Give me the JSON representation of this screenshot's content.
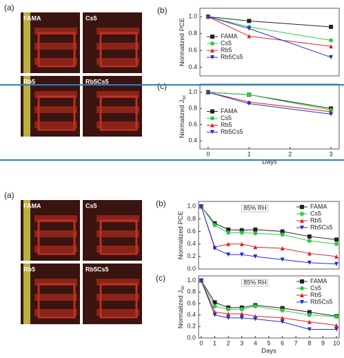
{
  "photo_panels": [
    {
      "label": "(a)",
      "tiles": [
        "FAMA",
        "Cs5",
        "Rb5",
        "Rb5Cs5"
      ]
    },
    {
      "label": "(a)",
      "tiles": [
        "FAMA",
        "Cs5",
        "Rb5",
        "Rb5Cs5"
      ]
    }
  ],
  "chart_data": [
    {
      "type": "line",
      "panel_label": "(b)",
      "y_label": "Normalized PCE",
      "x": [
        0,
        1,
        3
      ],
      "xlim": [
        -0.2,
        3.2
      ],
      "ylim": [
        0.3,
        1.1
      ],
      "yticks": [
        0.4,
        0.6,
        0.8,
        {
          "value": 1,
          "label": "1.0"
        }
      ],
      "legend": "center left",
      "series": [
        {
          "name": "FAMA",
          "color": "#222222",
          "marker": "square",
          "values": [
            1,
            0.95,
            0.88
          ]
        },
        {
          "name": "Cs5",
          "color": "#2ecc40",
          "marker": "circle",
          "values": [
            1,
            0.88,
            0.72
          ]
        },
        {
          "name": "Rb5",
          "color": "#e02020",
          "marker": "triangle-up",
          "values": [
            1,
            0.77,
            0.65
          ]
        },
        {
          "name": "Rb5Cs5",
          "color": "#2030d0",
          "marker": "triangle-down",
          "values": [
            1,
            0.86,
            0.52
          ]
        }
      ]
    },
    {
      "type": "line",
      "panel_label": "(c)",
      "y_label": "Normalized J",
      "y_label_sub": "sc",
      "x_label": "Days",
      "x": [
        0,
        1,
        3
      ],
      "xlim": [
        -0.2,
        3.2
      ],
      "ylim": [
        0.3,
        1.1
      ],
      "xticks": [
        0,
        1,
        2,
        3
      ],
      "yticks": [
        0.4,
        0.6,
        0.8,
        {
          "value": 1,
          "label": "1.0"
        }
      ],
      "legend": "center left",
      "series": [
        {
          "name": "FAMA",
          "color": "#222222",
          "marker": "square",
          "values": [
            1,
            0.97,
            0.8
          ]
        },
        {
          "name": "Cs5",
          "color": "#2ecc40",
          "marker": "circle",
          "values": [
            1,
            0.97,
            0.78
          ]
        },
        {
          "name": "Rb5",
          "color": "#e02020",
          "marker": "triangle-up",
          "values": [
            1,
            0.88,
            0.76
          ]
        },
        {
          "name": "Rb5Cs5",
          "color": "#2030d0",
          "marker": "triangle-down",
          "values": [
            1,
            0.86,
            0.73
          ]
        }
      ]
    },
    {
      "type": "line",
      "panel_label": "(b)",
      "y_label": "Normalized PCE",
      "annotation": "85% RH",
      "x": [
        0,
        1,
        2,
        3,
        4,
        6,
        8,
        10
      ],
      "xlim": [
        -0.2,
        10.2
      ],
      "ylim": [
        0,
        1.08
      ],
      "yticks": [
        {
          "value": 0,
          "label": "0.0"
        },
        0.2,
        0.4,
        0.6,
        0.8,
        {
          "value": 1,
          "label": "1.0"
        }
      ],
      "legend": "upper right",
      "series": [
        {
          "name": "FAMA",
          "color": "#222222",
          "marker": "square",
          "values": [
            1,
            0.73,
            0.63,
            0.62,
            0.63,
            0.6,
            0.52,
            0.47
          ]
        },
        {
          "name": "Cs5",
          "color": "#2ecc40",
          "marker": "circle",
          "values": [
            1,
            0.7,
            0.58,
            0.58,
            0.57,
            0.55,
            0.45,
            0.4
          ]
        },
        {
          "name": "Rb5",
          "color": "#e02020",
          "marker": "triangle-up",
          "values": [
            1,
            0.35,
            0.4,
            0.4,
            0.35,
            0.33,
            0.25,
            0.2
          ]
        },
        {
          "name": "Rb5Cs5",
          "color": "#2030d0",
          "marker": "triangle-down",
          "values": [
            1,
            0.33,
            0.23,
            0.23,
            0.2,
            0.15,
            0.1,
            0.08
          ]
        }
      ]
    },
    {
      "type": "line",
      "panel_label": "(c)",
      "y_label": "Normalized J",
      "y_label_sub": "sc",
      "x_label": "Days",
      "annotation": "85% RH",
      "x": [
        0,
        1,
        2,
        3,
        4,
        6,
        8,
        10
      ],
      "xlim": [
        -0.2,
        10.2
      ],
      "ylim": [
        0,
        1.08
      ],
      "xticks": [
        0,
        1,
        2,
        3,
        4,
        5,
        6,
        7,
        8,
        9,
        10
      ],
      "yticks": [
        {
          "value": 0,
          "label": "0.0"
        },
        0.2,
        0.4,
        0.6,
        0.8,
        {
          "value": 1,
          "label": "1.0"
        }
      ],
      "legend": "upper right",
      "series": [
        {
          "name": "FAMA",
          "color": "#222222",
          "marker": "square",
          "values": [
            1,
            0.62,
            0.53,
            0.53,
            0.57,
            0.52,
            0.45,
            0.38
          ]
        },
        {
          "name": "Cs5",
          "color": "#2ecc40",
          "marker": "circle",
          "values": [
            1,
            0.55,
            0.5,
            0.5,
            0.55,
            0.48,
            0.4,
            0.37
          ]
        },
        {
          "name": "Rb5",
          "color": "#e02020",
          "marker": "triangle-up",
          "values": [
            1,
            0.45,
            0.42,
            0.42,
            0.38,
            0.35,
            0.28,
            0.22
          ]
        },
        {
          "name": "Rb5Cs5",
          "color": "#2030d0",
          "marker": "triangle-down",
          "values": [
            1,
            0.4,
            0.35,
            0.35,
            0.33,
            0.28,
            0.15,
            0.15
          ]
        }
      ]
    }
  ]
}
